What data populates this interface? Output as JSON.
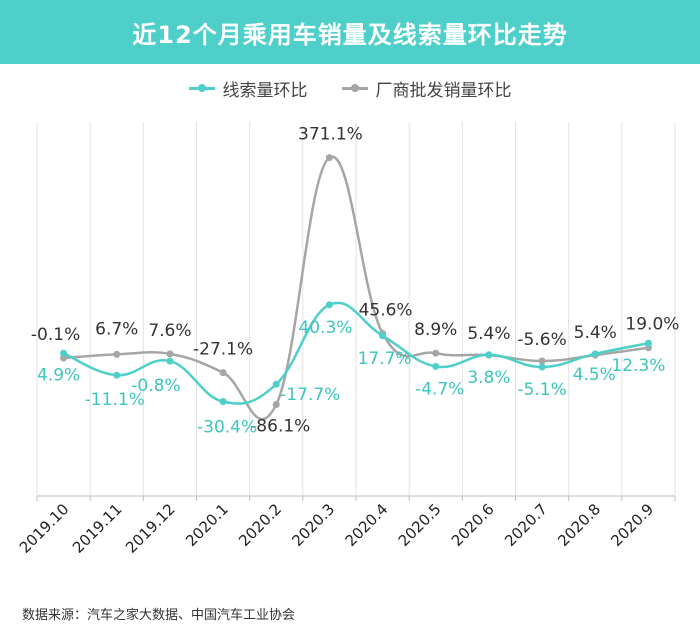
{
  "title": "近12个月乘用车销量及线索量环比走势",
  "source": "数据来源：汽车之家大数据、中国汽车工业协会",
  "colors": {
    "header": "#4ECFC9",
    "series1": "#4ECFC9",
    "series2": "#A6A6A6"
  },
  "chart_data": {
    "type": "line",
    "categories": [
      "2019.10",
      "2019.11",
      "2019.12",
      "2020.1",
      "2020.2",
      "2020.3",
      "2020.4",
      "2020.5",
      "2020.6",
      "2020.7",
      "2020.8",
      "2020.9"
    ],
    "series": [
      {
        "name": "线索量环比",
        "values": [
          4.9,
          -11.1,
          -0.8,
          -30.4,
          -17.7,
          40.3,
          17.7,
          -4.7,
          3.8,
          -5.1,
          4.5,
          12.3
        ],
        "labels": [
          "4.9%",
          "-11.1%",
          "-0.8%",
          "-30.4%",
          "-17.7%",
          "40.3%",
          "17.7%",
          "-4.7%",
          "3.8%",
          "-5.1%",
          "4.5%",
          "12.3%"
        ]
      },
      {
        "name": "厂商批发销量环比",
        "values": [
          -0.1,
          6.7,
          7.6,
          -27.1,
          -86.1,
          371.1,
          45.6,
          8.9,
          5.4,
          -5.6,
          5.4,
          19.0
        ],
        "labels": [
          "-0.1%",
          "6.7%",
          "7.6%",
          "-27.1%",
          "-86.1%",
          "371.1%",
          "45.6%",
          "8.9%",
          "5.4%",
          "-5.6%",
          "5.4%",
          "19.0%"
        ]
      }
    ],
    "smooth": true,
    "grid": "vertical",
    "legend": "top-center"
  }
}
